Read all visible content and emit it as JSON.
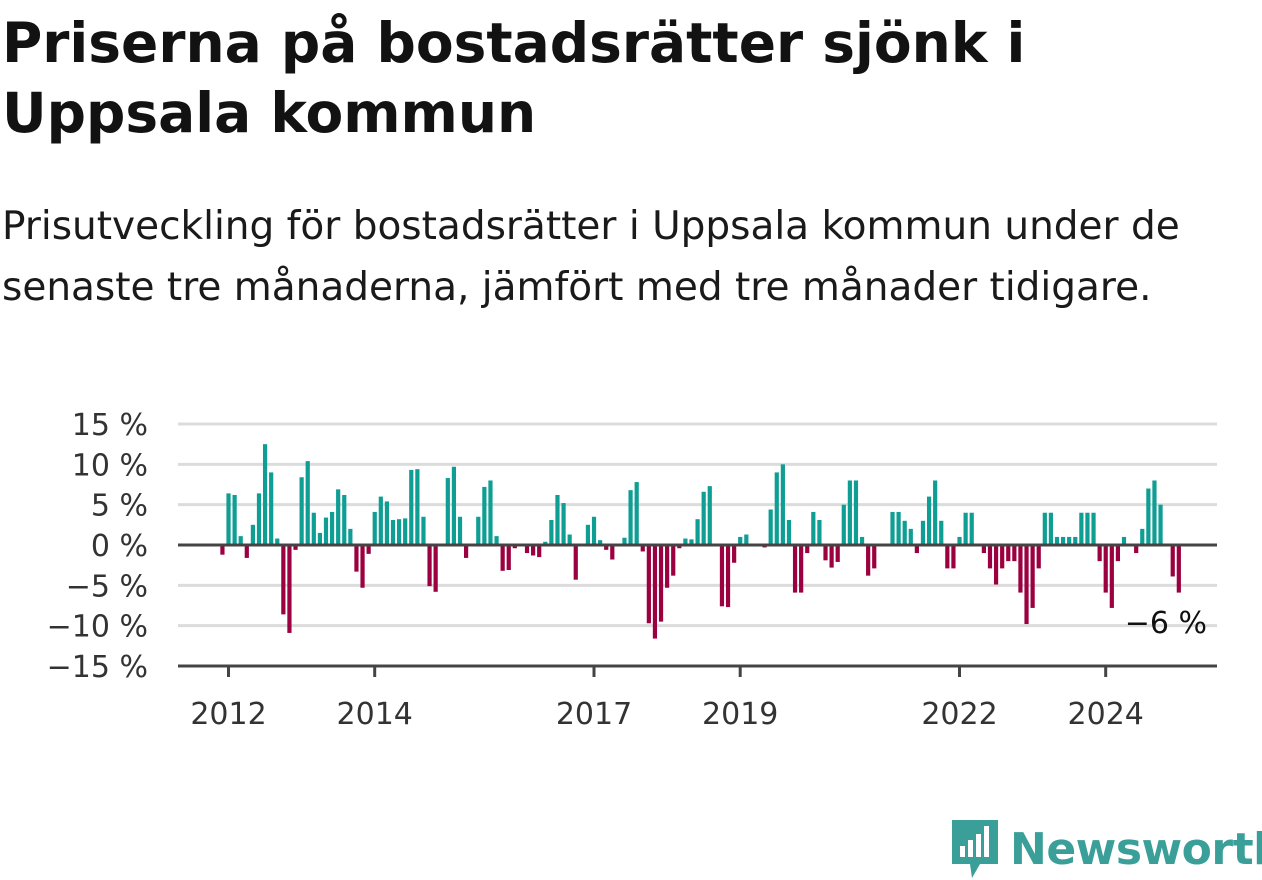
{
  "title": "Priserna på bostadsrätter sjönk i Uppsala kommun",
  "subtitle": "Prisutveckling för bostadsrätter i Uppsala kommun under de senaste tre månaderna, jämfört med tre månader tidigare.",
  "brand": {
    "name": "Newsworthy",
    "color": "#3a9f99"
  },
  "colors": {
    "positive": "#0f9e94",
    "negative": "#9b0040",
    "grid": "#dcdcdc",
    "axis": "#444444"
  },
  "chart_data": {
    "type": "bar",
    "ylabel": "",
    "ylim": [
      -15,
      15
    ],
    "y_ticks": [
      15,
      10,
      5,
      0,
      -5,
      -10,
      -15
    ],
    "y_tick_labels": [
      "15 %",
      "10 %",
      "5 %",
      "0 %",
      "−5 %",
      "−10 %",
      "−15 %"
    ],
    "x_ticks": [
      2012,
      2014,
      2017,
      2019,
      2022,
      2024
    ],
    "x_tick_labels": [
      "2012",
      "2014",
      "2017",
      "2019",
      "2022",
      "2024"
    ],
    "x_start": 2011.917,
    "period": "monthly",
    "end_label": "−6 %",
    "values": [
      -1.2,
      6.4,
      6.2,
      1.1,
      -1.6,
      2.5,
      6.4,
      12.5,
      9.0,
      0.8,
      -8.6,
      -10.9,
      -0.6,
      8.4,
      10.4,
      4.0,
      1.5,
      3.4,
      4.1,
      6.9,
      6.2,
      2.0,
      -3.3,
      -5.3,
      -1.1,
      4.1,
      6.0,
      5.4,
      3.1,
      3.2,
      3.3,
      9.3,
      9.4,
      3.5,
      -5.1,
      -5.8,
      0.0,
      8.3,
      9.7,
      3.5,
      -1.6,
      0.0,
      3.5,
      7.2,
      8.0,
      1.1,
      -3.2,
      -3.1,
      -0.4,
      0.0,
      -1.0,
      -1.3,
      -1.5,
      0.4,
      3.1,
      6.2,
      5.2,
      1.3,
      -4.3,
      0.0,
      2.5,
      3.5,
      0.6,
      -0.6,
      -1.8,
      0.0,
      0.9,
      6.8,
      7.8,
      -0.8,
      -9.7,
      -11.6,
      -9.5,
      -5.3,
      -3.8,
      -0.4,
      0.8,
      0.7,
      3.2,
      6.6,
      7.3,
      0.0,
      -7.6,
      -7.7,
      -2.2,
      1.0,
      1.3,
      0.0,
      0.0,
      -0.3,
      4.4,
      9.0,
      10.0,
      3.1,
      -5.9,
      -5.9,
      -1.0,
      4.1,
      3.1,
      -1.9,
      -2.8,
      -2.1,
      5.0,
      8.0,
      8.0,
      1.0,
      -3.8,
      -2.9,
      0.0,
      0.0,
      4.1,
      4.1,
      3.0,
      2.0,
      -1.0,
      3.0,
      6.0,
      8.0,
      3.0,
      -2.9,
      -2.9,
      1.0,
      4.0,
      4.0,
      0.0,
      -1.0,
      -2.9,
      -4.9,
      -2.9,
      -2.0,
      -2.0,
      -5.9,
      -9.8,
      -7.8,
      -2.9,
      4.0,
      4.0,
      1.0,
      1.0,
      1.0,
      1.0,
      4.0,
      4.0,
      4.0,
      -2.0,
      -5.9,
      -7.8,
      -2.0,
      1.0,
      0.0,
      -1.0,
      2.0,
      7.0,
      8.0,
      5.0,
      0.0,
      -3.9,
      -5.9
    ]
  }
}
